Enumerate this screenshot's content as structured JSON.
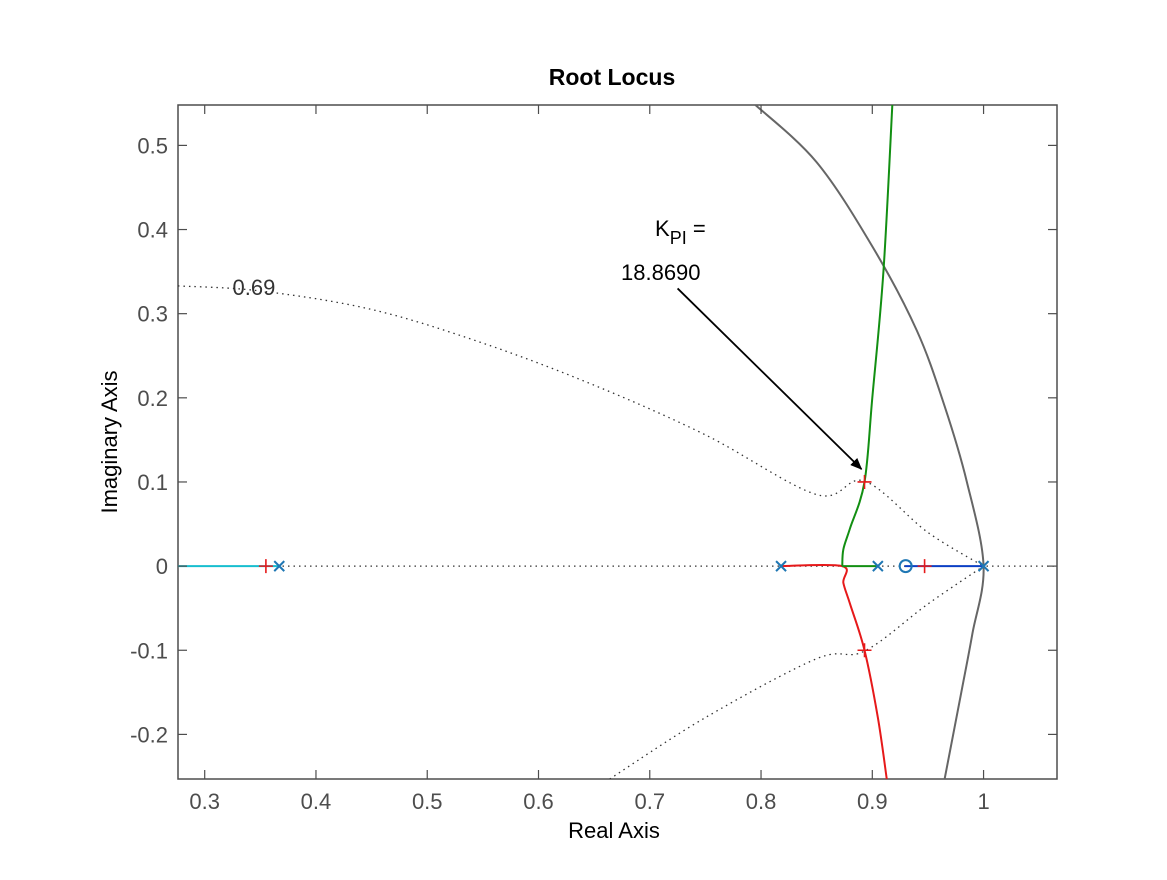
{
  "chart_data": {
    "type": "line",
    "title": "Root Locus",
    "xlabel": "Real Axis",
    "ylabel": "Imaginary Axis",
    "xlim": [
      0.276,
      1.066
    ],
    "ylim": [
      -0.253,
      0.548
    ],
    "xticks": [
      "0.3",
      "0.4",
      "0.5",
      "0.6",
      "0.7",
      "0.8",
      "0.9",
      "1"
    ],
    "xtick_values": [
      0.3,
      0.4,
      0.5,
      0.6,
      0.7,
      0.8,
      0.9,
      1.0
    ],
    "yticks": [
      "0.5",
      "0.4",
      "0.3",
      "0.2",
      "0.1",
      "0",
      "-0.1",
      "-0.2"
    ],
    "ytick_values": [
      0.5,
      0.4,
      0.3,
      0.2,
      0.1,
      0.0,
      -0.1,
      -0.2
    ],
    "grid": "off",
    "damping_label": "0.69",
    "damping_label_pos": [
      0.325,
      0.332
    ],
    "damping_curve": [
      [
        0.276,
        0.333
      ],
      [
        0.35,
        0.327
      ],
      [
        0.45,
        0.305
      ],
      [
        0.55,
        0.265
      ],
      [
        0.65,
        0.215
      ],
      [
        0.75,
        0.156
      ],
      [
        0.85,
        0.085
      ],
      [
        0.893,
        0.101
      ],
      [
        0.95,
        0.04
      ],
      [
        1.0,
        0.0
      ]
    ],
    "damping_curve_lower": [
      [
        0.664,
        -0.253
      ],
      [
        0.75,
        -0.18
      ],
      [
        0.85,
        -0.11
      ],
      [
        0.893,
        -0.101
      ],
      [
        0.95,
        -0.045
      ],
      [
        1.0,
        0.0
      ]
    ],
    "unit_circle": [
      [
        0.795,
        0.548
      ],
      [
        0.85,
        0.48
      ],
      [
        0.9,
        0.38
      ],
      [
        0.94,
        0.28
      ],
      [
        0.965,
        0.19
      ],
      [
        0.985,
        0.1
      ],
      [
        1.0,
        0.0
      ],
      [
        0.99,
        -0.08
      ],
      [
        0.98,
        -0.15
      ],
      [
        0.965,
        -0.253
      ]
    ],
    "series": [
      {
        "color": "#17becf",
        "points": [
          [
            0.276,
            0.0
          ],
          [
            0.366,
            0.0
          ]
        ]
      },
      {
        "color": "#e6191a",
        "points": [
          [
            0.818,
            0.0
          ],
          [
            0.873,
            0.0
          ],
          [
            0.874,
            -0.02
          ],
          [
            0.88,
            -0.045
          ],
          [
            0.893,
            -0.1
          ],
          [
            0.905,
            -0.18
          ],
          [
            0.913,
            -0.253
          ]
        ]
      },
      {
        "color": "#128f12",
        "points": [
          [
            0.873,
            0.0
          ],
          [
            0.905,
            0.0
          ]
        ]
      },
      {
        "color": "#128f12",
        "points": [
          [
            0.873,
            0.0
          ],
          [
            0.874,
            0.02
          ],
          [
            0.88,
            0.045
          ],
          [
            0.893,
            0.1
          ],
          [
            0.9,
            0.2
          ],
          [
            0.91,
            0.35
          ],
          [
            0.918,
            0.548
          ]
        ]
      },
      {
        "color": "#0b3fc4",
        "points": [
          [
            0.929,
            0.0
          ],
          [
            1.0,
            0.0
          ]
        ]
      }
    ],
    "poles_x": [
      [
        0.367,
        0.0
      ],
      [
        0.818,
        0.0
      ],
      [
        0.905,
        0.0
      ],
      [
        1.0,
        0.0
      ]
    ],
    "zeros_o": [
      [
        0.93,
        0.0
      ]
    ],
    "gain_markers": [
      [
        0.355,
        0.0
      ],
      [
        0.893,
        0.1
      ],
      [
        0.893,
        -0.1
      ],
      [
        0.947,
        0.0
      ]
    ],
    "annotation": {
      "line1_main": "K",
      "line1_sub": "PI",
      "line1_eq": " =",
      "line2": "18.8690",
      "arrow_to": [
        0.893,
        0.101
      ],
      "text_anchor": [
        0.705,
        0.405
      ]
    }
  }
}
